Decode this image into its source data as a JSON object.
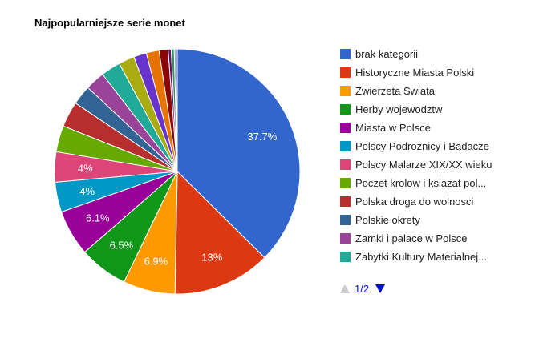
{
  "chart_data": {
    "type": "pie",
    "title": "Najpopularniejsze serie monet",
    "slices": [
      {
        "label": "brak kategorii",
        "value": 37.7,
        "color": "#3366cc",
        "data_label": "37.7%"
      },
      {
        "label": "Historyczne Miasta Polski",
        "value": 13.0,
        "color": "#dc3912",
        "data_label": "13%"
      },
      {
        "label": "Zwierzeta Swiata",
        "value": 6.9,
        "color": "#ff9900",
        "data_label": "6.9%"
      },
      {
        "label": "Herby wojewodztw",
        "value": 6.5,
        "color": "#109618",
        "data_label": "6.5%"
      },
      {
        "label": "Miasta w Polsce",
        "value": 6.1,
        "color": "#990099",
        "data_label": "6.1%"
      },
      {
        "label": "Polscy Podroznicy i Badacze",
        "value": 4.0,
        "color": "#0099c6",
        "data_label": "4%"
      },
      {
        "label": "Polscy Malarze XIX/XX wieku",
        "value": 4.0,
        "color": "#dd4477",
        "data_label": "4%"
      },
      {
        "label": "Poczet krolow i ksiazat pol...",
        "value": 3.5,
        "color": "#66aa00",
        "data_label": ""
      },
      {
        "label": "Polska droga do wolnosci",
        "value": 3.4,
        "color": "#b82e2e",
        "data_label": ""
      },
      {
        "label": "Polskie okrety",
        "value": 2.6,
        "color": "#316395",
        "data_label": ""
      },
      {
        "label": "Zamki i palace w Polsce",
        "value": 2.6,
        "color": "#994499",
        "data_label": ""
      },
      {
        "label": "Zabytki Kultury Materialnej...",
        "value": 2.6,
        "color": "#22aa99",
        "data_label": ""
      },
      {
        "value": 2.1,
        "color": "#aaaa11",
        "data_label": ""
      },
      {
        "value": 1.7,
        "color": "#6633cc",
        "data_label": ""
      },
      {
        "value": 1.7,
        "color": "#e67300",
        "data_label": ""
      },
      {
        "value": 1.2,
        "color": "#8b0707",
        "data_label": ""
      },
      {
        "value": 0.4,
        "color": "#651067",
        "data_label": ""
      },
      {
        "value": 0.4,
        "color": "#329262",
        "data_label": ""
      },
      {
        "value": 0.2,
        "color": "#5574a6",
        "data_label": ""
      },
      {
        "value": 0.2,
        "color": "#3b3eac",
        "data_label": ""
      }
    ],
    "legend_position": "right"
  },
  "legend": {
    "page_text": "1/2"
  }
}
